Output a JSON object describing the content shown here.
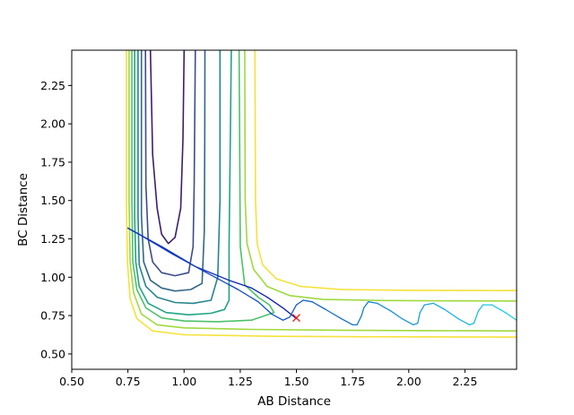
{
  "chart_data": {
    "type": "contour",
    "title": "",
    "xlabel": "AB Distance",
    "ylabel": "BC Distance",
    "xlim": [
      0.5,
      2.48
    ],
    "ylim": [
      0.4,
      2.48
    ],
    "grid": false,
    "legend": "none",
    "x_ticks": [
      "0.50",
      "0.75",
      "1.00",
      "1.25",
      "1.50",
      "1.75",
      "2.00",
      "2.25"
    ],
    "y_ticks": [
      "0.50",
      "0.75",
      "1.00",
      "1.25",
      "1.50",
      "1.75",
      "2.00",
      "2.25"
    ],
    "contours": [
      {
        "color": "#3b1f6e",
        "points": [
          [
            0.85,
            2.48
          ],
          [
            0.86,
            1.8
          ],
          [
            0.88,
            1.45
          ],
          [
            0.9,
            1.28
          ],
          [
            0.93,
            1.22
          ],
          [
            0.96,
            1.26
          ],
          [
            0.985,
            1.45
          ],
          [
            0.995,
            1.9
          ],
          [
            1.0,
            2.48
          ]
        ]
      },
      {
        "color": "#3d4d8a",
        "points": [
          [
            0.828,
            2.48
          ],
          [
            0.83,
            1.6
          ],
          [
            0.84,
            1.25
          ],
          [
            0.86,
            1.1
          ],
          [
            0.9,
            1.03
          ],
          [
            0.96,
            1.01
          ],
          [
            1.02,
            1.03
          ],
          [
            1.04,
            1.2
          ],
          [
            1.045,
            1.6
          ],
          [
            1.05,
            2.48
          ]
        ]
      },
      {
        "color": "#346686",
        "points": [
          [
            0.81,
            2.48
          ],
          [
            0.81,
            1.4
          ],
          [
            0.82,
            1.1
          ],
          [
            0.85,
            0.98
          ],
          [
            0.9,
            0.93
          ],
          [
            0.96,
            0.91
          ],
          [
            1.03,
            0.92
          ],
          [
            1.08,
            0.96
          ],
          [
            1.09,
            1.3
          ],
          [
            1.092,
            1.9
          ],
          [
            1.093,
            2.48
          ]
        ]
      },
      {
        "color": "#28858c",
        "points": [
          [
            0.795,
            2.48
          ],
          [
            0.795,
            1.4
          ],
          [
            0.8,
            1.08
          ],
          [
            0.83,
            0.94
          ],
          [
            0.88,
            0.87
          ],
          [
            0.96,
            0.835
          ],
          [
            1.04,
            0.83
          ],
          [
            1.12,
            0.85
          ],
          [
            1.15,
            1.0
          ],
          [
            1.16,
            1.5
          ],
          [
            1.16,
            2.48
          ]
        ]
      },
      {
        "color": "#22a384",
        "points": [
          [
            0.78,
            2.48
          ],
          [
            0.78,
            1.4
          ],
          [
            0.785,
            1.1
          ],
          [
            0.8,
            0.94
          ],
          [
            0.84,
            0.83
          ],
          [
            0.92,
            0.77
          ],
          [
            1.02,
            0.755
          ],
          [
            1.12,
            0.765
          ],
          [
            1.18,
            0.79
          ],
          [
            1.2,
            0.85
          ],
          [
            1.2,
            1.2
          ],
          [
            1.205,
            1.8
          ],
          [
            1.21,
            2.48
          ]
        ]
      },
      {
        "color": "#4dc16a",
        "points": [
          [
            0.768,
            2.48
          ],
          [
            0.768,
            1.5
          ],
          [
            0.772,
            1.1
          ],
          [
            0.79,
            0.92
          ],
          [
            0.83,
            0.8
          ],
          [
            0.9,
            0.735
          ],
          [
            1.0,
            0.715
          ],
          [
            1.15,
            0.71
          ],
          [
            1.3,
            0.72
          ],
          [
            1.4,
            0.77
          ],
          [
            1.38,
            0.82
          ],
          [
            1.33,
            0.87
          ],
          [
            1.27,
            0.95
          ],
          [
            1.25,
            1.2
          ],
          [
            1.245,
            2.48
          ]
        ]
      },
      {
        "color": "#9fd940",
        "points": [
          [
            0.755,
            2.48
          ],
          [
            0.755,
            1.5
          ],
          [
            0.76,
            1.1
          ],
          [
            0.775,
            0.9
          ],
          [
            0.81,
            0.76
          ],
          [
            0.88,
            0.69
          ],
          [
            1.0,
            0.67
          ],
          [
            1.3,
            0.66
          ],
          [
            1.7,
            0.655
          ],
          [
            2.1,
            0.652
          ],
          [
            2.48,
            0.65
          ]
        ]
      },
      {
        "color": "#9fd940",
        "points": [
          [
            1.27,
            2.48
          ],
          [
            1.272,
            1.5
          ],
          [
            1.28,
            1.22
          ],
          [
            1.31,
            1.05
          ],
          [
            1.37,
            0.94
          ],
          [
            1.47,
            0.88
          ],
          [
            1.62,
            0.855
          ],
          [
            1.9,
            0.848
          ],
          [
            2.2,
            0.846
          ],
          [
            2.48,
            0.845
          ]
        ]
      },
      {
        "color": "#f5e23a",
        "points": [
          [
            0.743,
            2.48
          ],
          [
            0.743,
            1.5
          ],
          [
            0.748,
            1.1
          ],
          [
            0.76,
            0.86
          ],
          [
            0.79,
            0.73
          ],
          [
            0.86,
            0.65
          ],
          [
            1.0,
            0.625
          ],
          [
            1.4,
            0.615
          ],
          [
            1.8,
            0.612
          ],
          [
            2.48,
            0.61
          ]
        ]
      },
      {
        "color": "#f5e23a",
        "points": [
          [
            1.315,
            2.48
          ],
          [
            1.318,
            1.5
          ],
          [
            1.325,
            1.22
          ],
          [
            1.35,
            1.08
          ],
          [
            1.41,
            0.99
          ],
          [
            1.52,
            0.94
          ],
          [
            1.7,
            0.92
          ],
          [
            2.0,
            0.915
          ],
          [
            2.48,
            0.913
          ]
        ]
      }
    ],
    "trajectory": {
      "color_start": "#0a16b5",
      "color_end": "#1fd4e6",
      "points": [
        [
          1.5,
          0.73
        ],
        [
          1.44,
          0.8
        ],
        [
          1.37,
          0.87
        ],
        [
          1.3,
          0.93
        ],
        [
          1.2,
          0.98
        ],
        [
          1.05,
          1.07
        ],
        [
          0.9,
          1.2
        ],
        [
          0.75,
          1.32
        ],
        [
          0.8,
          1.28
        ],
        [
          0.95,
          1.15
        ],
        [
          1.1,
          1.03
        ],
        [
          1.24,
          0.92
        ],
        [
          1.33,
          0.84
        ],
        [
          1.39,
          0.76
        ],
        [
          1.44,
          0.72
        ],
        [
          1.47,
          0.74
        ],
        [
          1.5,
          0.82
        ],
        [
          1.53,
          0.85
        ],
        [
          1.57,
          0.84
        ],
        [
          1.63,
          0.79
        ],
        [
          1.7,
          0.73
        ],
        [
          1.75,
          0.69
        ],
        [
          1.77,
          0.69
        ],
        [
          1.79,
          0.75
        ],
        [
          1.8,
          0.8
        ],
        [
          1.82,
          0.84
        ],
        [
          1.86,
          0.83
        ],
        [
          1.92,
          0.78
        ],
        [
          1.97,
          0.73
        ],
        [
          2.02,
          0.69
        ],
        [
          2.04,
          0.7
        ],
        [
          2.05,
          0.77
        ],
        [
          2.07,
          0.82
        ],
        [
          2.11,
          0.83
        ],
        [
          2.16,
          0.79
        ],
        [
          2.22,
          0.73
        ],
        [
          2.27,
          0.69
        ],
        [
          2.29,
          0.7
        ],
        [
          2.31,
          0.78
        ],
        [
          2.33,
          0.82
        ],
        [
          2.37,
          0.82
        ],
        [
          2.43,
          0.77
        ],
        [
          2.48,
          0.72
        ]
      ]
    },
    "marker": {
      "symbol": "x",
      "color": "#e8261c",
      "x": 1.5,
      "y": 0.735
    }
  }
}
